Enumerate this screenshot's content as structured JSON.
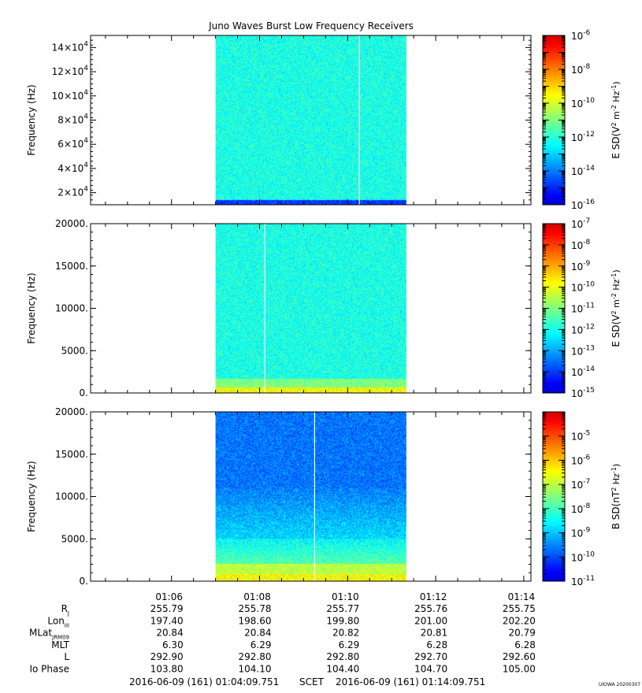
{
  "title": "Juno Waves Burst Low Frequency Receivers",
  "credit": "UIOWA 20200307",
  "chart_data": [
    {
      "type": "heatmap",
      "ylabel": "Frequency (Hz)",
      "ylim": [
        10000,
        150000
      ],
      "yticks": [
        20000,
        40000,
        60000,
        80000,
        100000,
        120000,
        140000
      ],
      "ytick_labels": [
        {
          "mant": "2×10",
          "exp": "4"
        },
        {
          "mant": "4×10",
          "exp": "4"
        },
        {
          "mant": "6×10",
          "exp": "4"
        },
        {
          "mant": "8×10",
          "exp": "4"
        },
        {
          "mant": "10×10",
          "exp": "4"
        },
        {
          "mant": "12×10",
          "exp": "4"
        },
        {
          "mant": "14×10",
          "exp": "4"
        }
      ],
      "data_start": "01:07:00",
      "data_end": "01:11:20",
      "gap_line": "01:10:16",
      "colorbar": {
        "label_main": "E SD",
        "label_units": "(V",
        "label_rest": " m",
        "label_hz": " Hz",
        "label_close": ")",
        "log_min": -16,
        "log_max": -6,
        "tick_exps": [
          "-16",
          "-14",
          "-12",
          "-10",
          "-8",
          "-6"
        ]
      }
    },
    {
      "type": "heatmap",
      "ylabel": "Frequency (Hz)",
      "ylim": [
        0,
        20000
      ],
      "yticks": [
        0,
        5000,
        10000,
        15000,
        20000
      ],
      "ytick_labels": [
        "0.",
        "5000.",
        "10000.",
        "15000.",
        "20000."
      ],
      "data_start": "01:07:00",
      "data_end": "01:11:20",
      "gap_line": "01:08:07",
      "colorbar": {
        "label_main": "E SD",
        "label_units": "(V",
        "label_rest": " m",
        "label_hz": " Hz",
        "label_close": ")",
        "log_min": -15,
        "log_max": -7,
        "tick_exps": [
          "-15",
          "-14",
          "-13",
          "-12",
          "-11",
          "-10",
          "-9",
          "-8",
          "-7"
        ]
      }
    },
    {
      "type": "heatmap",
      "ylabel": "Frequency (Hz)",
      "ylim": [
        0,
        20000
      ],
      "yticks": [
        0,
        5000,
        10000,
        15000,
        20000
      ],
      "ytick_labels": [
        "0.",
        "5000.",
        "10000.",
        "15000.",
        "20000."
      ],
      "data_start": "01:07:00",
      "data_end": "01:11:20",
      "gap_line": "01:09:15",
      "colorbar": {
        "label_main": "B SD",
        "label_units": "(nT",
        "label_rest": "",
        "label_hz": " Hz",
        "label_close": ")",
        "log_min": -11,
        "log_max": -4,
        "tick_exps": [
          "-11",
          "-10",
          "-9",
          "-8",
          "-7",
          "-6",
          "-5"
        ]
      }
    }
  ],
  "time_axis": {
    "start": "01:04:09.751",
    "end": "01:14:09.751",
    "tick_times": [
      "01:06",
      "01:08",
      "01:10",
      "01:12",
      "01:14"
    ],
    "tick_minutes": [
      6,
      8,
      10,
      12,
      14
    ],
    "start_minute": 4.16252,
    "end_minute": 14.16252
  },
  "ephemeris": [
    {
      "label": "R",
      "sub": "J",
      "values": [
        "255.79",
        "255.78",
        "255.77",
        "255.76",
        "255.75"
      ]
    },
    {
      "label": "Lon",
      "sub": "III",
      "values": [
        "197.40",
        "198.60",
        "199.80",
        "201.00",
        "202.20"
      ]
    },
    {
      "label": "MLat",
      "sub": "JRM09",
      "values": [
        "20.84",
        "20.84",
        "20.82",
        "20.81",
        "20.79"
      ]
    },
    {
      "label": "MLT",
      "sub": "",
      "values": [
        "6.30",
        "6.29",
        "6.29",
        "6.28",
        "6.28"
      ]
    },
    {
      "label": "L",
      "sub": "",
      "values": [
        "292.90",
        "292.80",
        "292.80",
        "292.70",
        "292.60"
      ]
    },
    {
      "label": "Io Phase",
      "sub": "",
      "values": [
        "103.80",
        "104.10",
        "104.40",
        "104.70",
        "105.00"
      ]
    }
  ],
  "footer": {
    "start": "2016-06-09 (161) 01:04:09.751",
    "scet": "SCET",
    "end": "2016-06-09 (161) 01:14:09.751"
  }
}
